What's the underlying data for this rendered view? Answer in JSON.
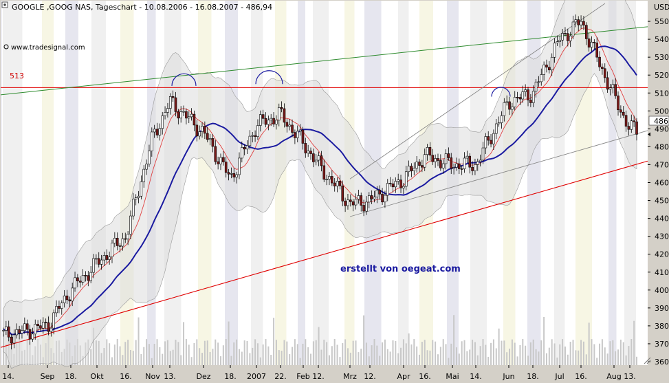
{
  "header": {
    "title": "GOOGLE ,GOOG NAS, Tageschart - 10.08.2006 - 16.08.2007 - 486,94",
    "source": "www.tradesignal.com",
    "watermark": "erstellt von oegeat.com",
    "level_label": "513",
    "last_price_label": "486"
  },
  "colors": {
    "background": "#ffffff",
    "band_fill": "#dcdcdc",
    "stripe_light": "#f0f0f0",
    "stripe_dark": "#e6e6ef",
    "stripe_yellow": "#f7f6e4",
    "candle_up": "#ffffff",
    "candle_down": "#7a1a1a",
    "ma_long": "#1a1aa0",
    "ma_short": "#e04040",
    "level_line": "#e00000",
    "trend_green": "#2e8b2e",
    "trend_red": "#e00000",
    "channel": "#888888",
    "volume": "#c8c8c8",
    "arc": "#1a1aa0"
  },
  "chart_data": {
    "type": "candlestick",
    "title": "GOOGLE ,GOOG NAS, Tageschart - 10.08.2006 - 16.08.2007 - 486,94",
    "y_axis": {
      "label": "USD",
      "range": [
        360,
        560
      ],
      "ticks": [
        360,
        370,
        380,
        390,
        400,
        410,
        420,
        430,
        440,
        450,
        460,
        470,
        480,
        490,
        500,
        510,
        520,
        530,
        540,
        550
      ]
    },
    "x_axis": {
      "ticks": [
        "14.",
        "Sep",
        "18.",
        "Okt",
        "16.",
        "Nov",
        "13.",
        "Dez",
        "18.",
        "2007",
        "22.",
        "Feb",
        "12.",
        "Mrz",
        "12.",
        "Apr",
        "16.",
        "Mai",
        "14.",
        "Jun",
        "18.",
        "Jul",
        "16.",
        "Aug",
        "13."
      ]
    },
    "horizontal_level": 513,
    "last_price": 486.94,
    "price_path": [
      {
        "x": "14.",
        "y": 375
      },
      {
        "x": "Sep",
        "y": 380
      },
      {
        "x": "18.",
        "y": 400
      },
      {
        "x": "Okt",
        "y": 415
      },
      {
        "x": "16.",
        "y": 430
      },
      {
        "x": "Nov",
        "y": 485
      },
      {
        "x": "13.",
        "y": 505
      },
      {
        "x": "Dez",
        "y": 488
      },
      {
        "x": "18.",
        "y": 462
      },
      {
        "x": "2007",
        "y": 492
      },
      {
        "x": "22.",
        "y": 498
      },
      {
        "x": "Feb",
        "y": 482
      },
      {
        "x": "12.",
        "y": 470
      },
      {
        "x": "Mrz",
        "y": 448
      },
      {
        "x": "12.",
        "y": 450
      },
      {
        "x": "Apr",
        "y": 462
      },
      {
        "x": "16.",
        "y": 475
      },
      {
        "x": "Mai",
        "y": 470
      },
      {
        "x": "14.",
        "y": 470
      },
      {
        "x": "Jun",
        "y": 505
      },
      {
        "x": "18.",
        "y": 510
      },
      {
        "x": "Jul",
        "y": 540
      },
      {
        "x": "16.",
        "y": 550
      },
      {
        "x": "Aug",
        "y": 508
      },
      {
        "x": "13.",
        "y": 490
      }
    ]
  }
}
